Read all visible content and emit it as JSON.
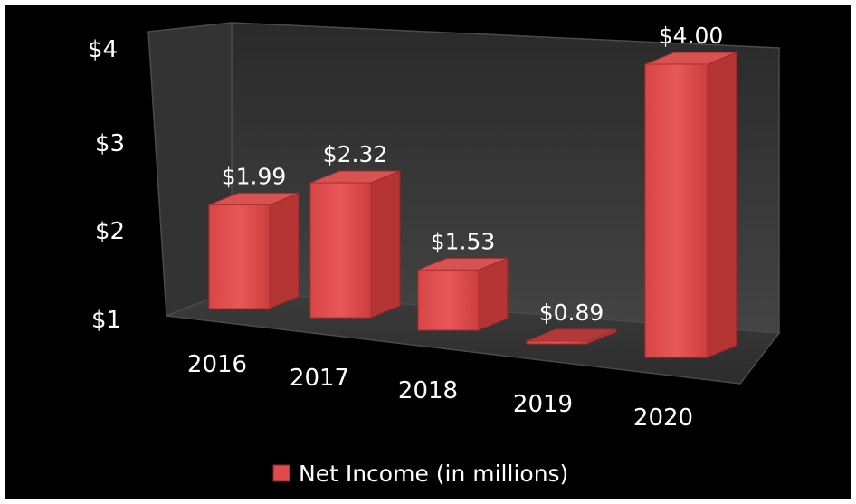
{
  "chart_data": {
    "type": "bar",
    "style": "3d-column",
    "categories": [
      "2016",
      "2017",
      "2018",
      "2019",
      "2020"
    ],
    "series": [
      {
        "name": "Net Income (in millions)",
        "values": [
          1.99,
          2.32,
          1.53,
          0.89,
          4.0
        ],
        "data_labels": [
          "$1.99",
          "$2.32",
          "$1.53",
          "$0.89",
          "$4.00"
        ],
        "color": "#e04a4a"
      }
    ],
    "ytick_labels": [
      "$1",
      "$2",
      "$3",
      "$4"
    ],
    "yticks": [
      1,
      2,
      3,
      4
    ],
    "ylim": [
      0.89,
      4
    ],
    "legend": {
      "position": "bottom"
    },
    "grid": false,
    "background_color": "#000000",
    "wall_color": "#3a3a3a"
  }
}
